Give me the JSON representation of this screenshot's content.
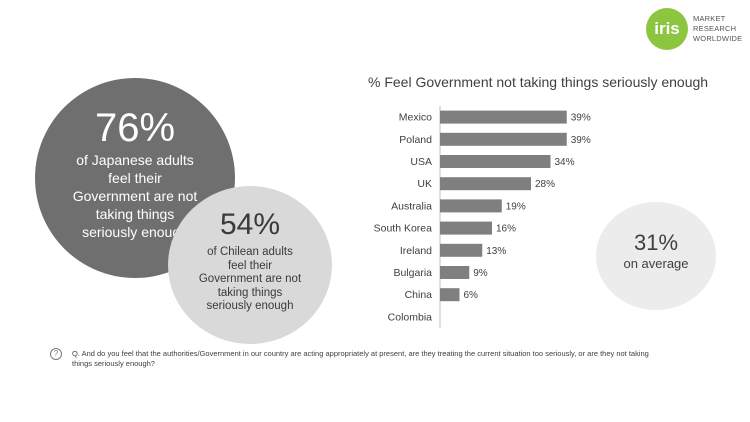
{
  "logo": {
    "mark": "iris",
    "lines": [
      "MARKET",
      "RESEARCH",
      "WORLDWIDE"
    ],
    "color": "#8cc63f"
  },
  "bubbles": {
    "japan": {
      "pct": "76%",
      "lines": [
        "of Japanese adults",
        "feel their",
        "Government are not",
        "taking things",
        "seriously enough"
      ]
    },
    "chile": {
      "pct": "54%",
      "lines": [
        "of Chilean  adults",
        "feel their",
        "Government are not",
        "taking things",
        "seriously enough"
      ]
    },
    "average": {
      "pct": "31%",
      "label": "on average"
    }
  },
  "chart_data": {
    "type": "bar",
    "orientation": "horizontal",
    "title": "% Feel Government not taking things seriously enough",
    "categories": [
      "Mexico",
      "Poland",
      "USA",
      "UK",
      "Australia",
      "South Korea",
      "Ireland",
      "Bulgaria",
      "China",
      "Colombia"
    ],
    "values": [
      39,
      39,
      34,
      28,
      19,
      16,
      13,
      9,
      6,
      null
    ],
    "value_labels": [
      "39%",
      "39%",
      "34%",
      "28%",
      "19%",
      "16%",
      "13%",
      "9%",
      "6%",
      ""
    ],
    "xlim": [
      0,
      40
    ],
    "bar_color": "#7f7f7f",
    "grid": false,
    "legend": "none"
  },
  "footnote": {
    "icon": "question-circle-icon",
    "text": "Q. And do you feel that the authorities/Government in our country are acting appropriately at present, are they treating the current situation too seriously, or are they not taking things seriously enough?"
  }
}
